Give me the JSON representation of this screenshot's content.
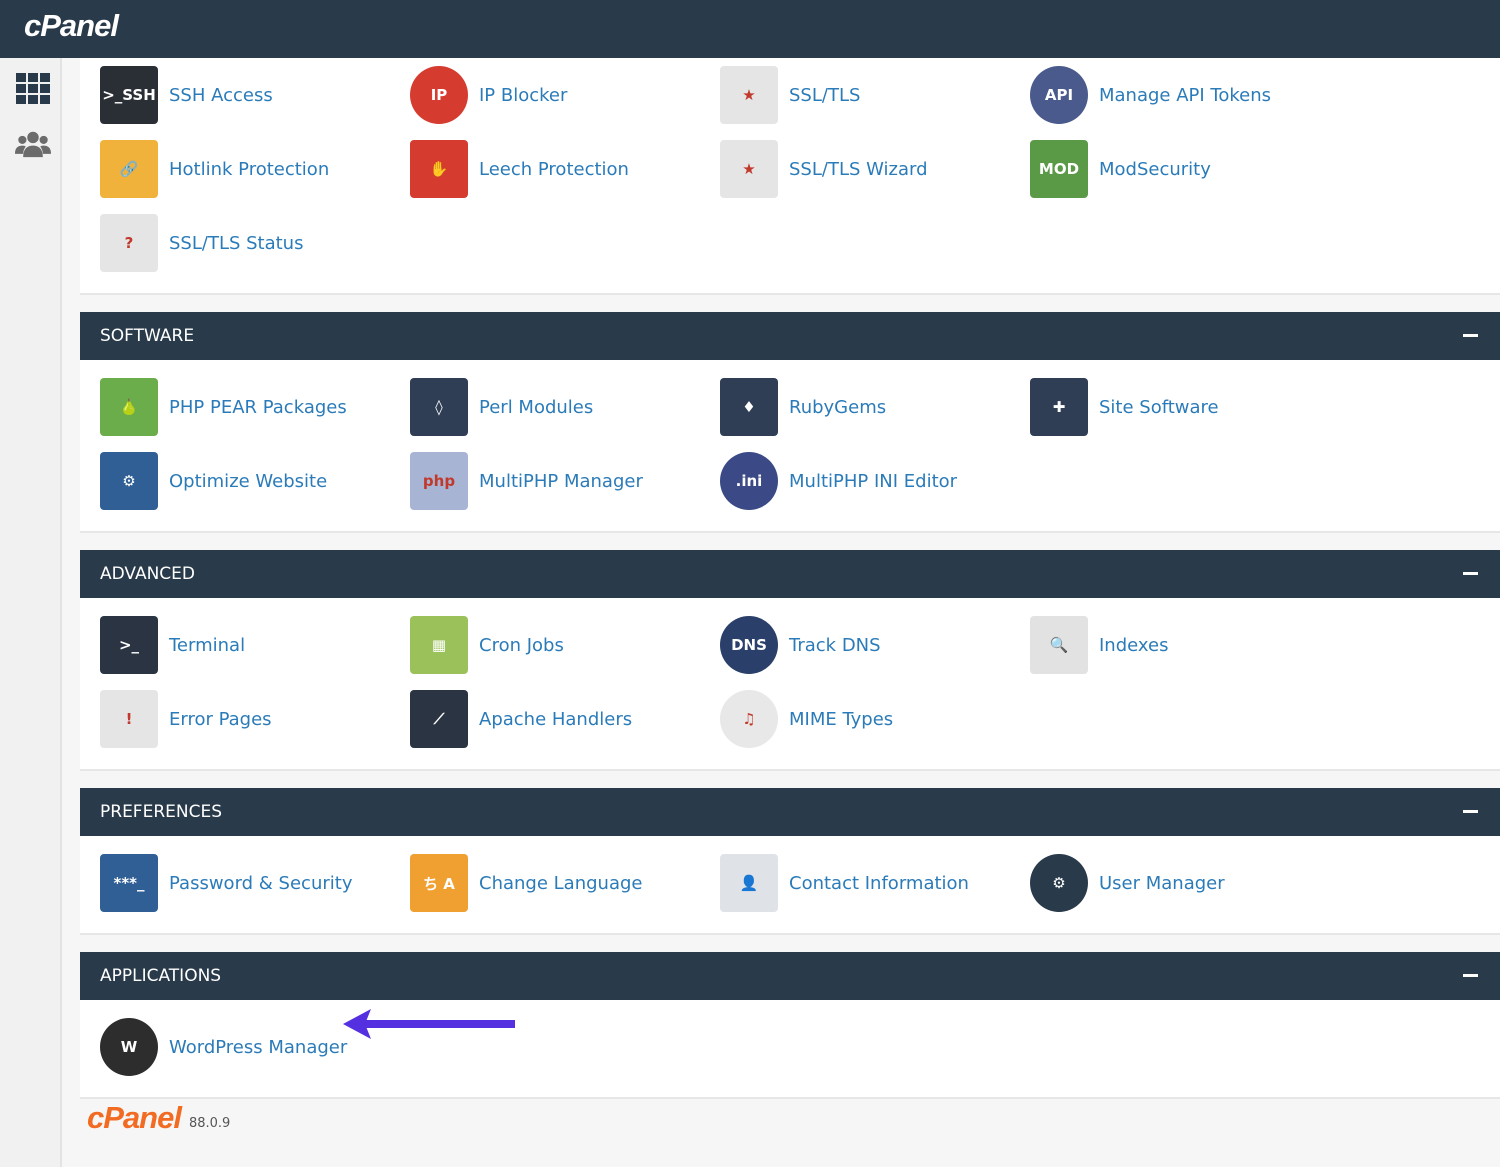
{
  "header": {
    "logo": "cPanel"
  },
  "sidebar": {
    "items": [
      {
        "icon": "grid-icon"
      },
      {
        "icon": "users-icon"
      }
    ]
  },
  "sections": [
    {
      "title": "",
      "items": [
        {
          "label": "SSH Access",
          "icon": "ssh-icon",
          "color": "#2a2f36",
          "glyph": ">_SSH"
        },
        {
          "label": "IP Blocker",
          "icon": "ip-blocker-icon",
          "color": "#d63b2f",
          "glyph": "IP",
          "round": true
        },
        {
          "label": "SSL/TLS",
          "icon": "certificate-icon",
          "color": "#e5e5e5",
          "glyph": "★"
        },
        {
          "label": "Manage API Tokens",
          "icon": "api-icon",
          "color": "#4a5a8c",
          "glyph": "API",
          "round": true
        },
        {
          "label": "Hotlink Protection",
          "icon": "lock-link-icon",
          "color": "#f0b23a",
          "glyph": "🔗"
        },
        {
          "label": "Leech Protection",
          "icon": "hand-stop-icon",
          "color": "#d63b2f",
          "glyph": "✋"
        },
        {
          "label": "SSL/TLS Wizard",
          "icon": "certificate-wizard-icon",
          "color": "#e5e5e5",
          "glyph": "★"
        },
        {
          "label": "ModSecurity",
          "icon": "shield-icon",
          "color": "#5a9a46",
          "glyph": "MOD"
        },
        {
          "label": "SSL/TLS Status",
          "icon": "certificate-status-icon",
          "color": "#e5e5e5",
          "glyph": "?"
        }
      ]
    },
    {
      "title": "SOFTWARE",
      "items": [
        {
          "label": "PHP PEAR Packages",
          "icon": "pear-icon",
          "color": "#6aad4a",
          "glyph": "🍐"
        },
        {
          "label": "Perl Modules",
          "icon": "perl-icon",
          "color": "#2f3d55",
          "glyph": "◊"
        },
        {
          "label": "RubyGems",
          "icon": "ruby-icon",
          "color": "#2f3d55",
          "glyph": "♦"
        },
        {
          "label": "Site Software",
          "icon": "puzzle-icon",
          "color": "#2f3d55",
          "glyph": "✚"
        },
        {
          "label": "Optimize Website",
          "icon": "optimize-icon",
          "color": "#2f5f95",
          "glyph": "⚙"
        },
        {
          "label": "MultiPHP Manager",
          "icon": "php-icon",
          "color": "#a8b4d4",
          "glyph": "php"
        },
        {
          "label": "MultiPHP INI Editor",
          "icon": "ini-icon",
          "color": "#3b4a86",
          "glyph": ".ini",
          "round": true
        }
      ]
    },
    {
      "title": "ADVANCED",
      "items": [
        {
          "label": "Terminal",
          "icon": "terminal-icon",
          "color": "#2a3442",
          "glyph": ">_"
        },
        {
          "label": "Cron Jobs",
          "icon": "calendar-clock-icon",
          "color": "#9bc25a",
          "glyph": "▦"
        },
        {
          "label": "Track DNS",
          "icon": "dns-pin-icon",
          "color": "#2a3f6a",
          "glyph": "DNS",
          "round": true
        },
        {
          "label": "Indexes",
          "icon": "folder-search-icon",
          "color": "#e2e2e2",
          "glyph": "🔍"
        },
        {
          "label": "Error Pages",
          "icon": "error-page-icon",
          "color": "#e5e5e5",
          "glyph": "!"
        },
        {
          "label": "Apache Handlers",
          "icon": "apache-icon",
          "color": "#2a3442",
          "glyph": "⟋"
        },
        {
          "label": "MIME Types",
          "icon": "mime-icon",
          "color": "#e8e8e8",
          "glyph": "♫",
          "round": true
        }
      ]
    },
    {
      "title": "PREFERENCES",
      "items": [
        {
          "label": "Password & Security",
          "icon": "password-icon",
          "color": "#2f5f95",
          "glyph": "***_"
        },
        {
          "label": "Change Language",
          "icon": "language-icon",
          "color": "#f0a030",
          "glyph": "ち A"
        },
        {
          "label": "Contact Information",
          "icon": "contact-card-icon",
          "color": "#dfe3e8",
          "glyph": "👤"
        },
        {
          "label": "User Manager",
          "icon": "user-gear-icon",
          "color": "#293a4a",
          "glyph": "⚙",
          "round": true
        }
      ]
    },
    {
      "title": "APPLICATIONS",
      "items": [
        {
          "label": "WordPress Manager",
          "icon": "wordpress-icon",
          "color": "#2d2d2d",
          "glyph": "W",
          "round": true
        }
      ]
    }
  ],
  "annotation": {
    "arrow_color": "#5530e0"
  },
  "footer": {
    "logo": "cPanel",
    "version": "88.0.9"
  }
}
